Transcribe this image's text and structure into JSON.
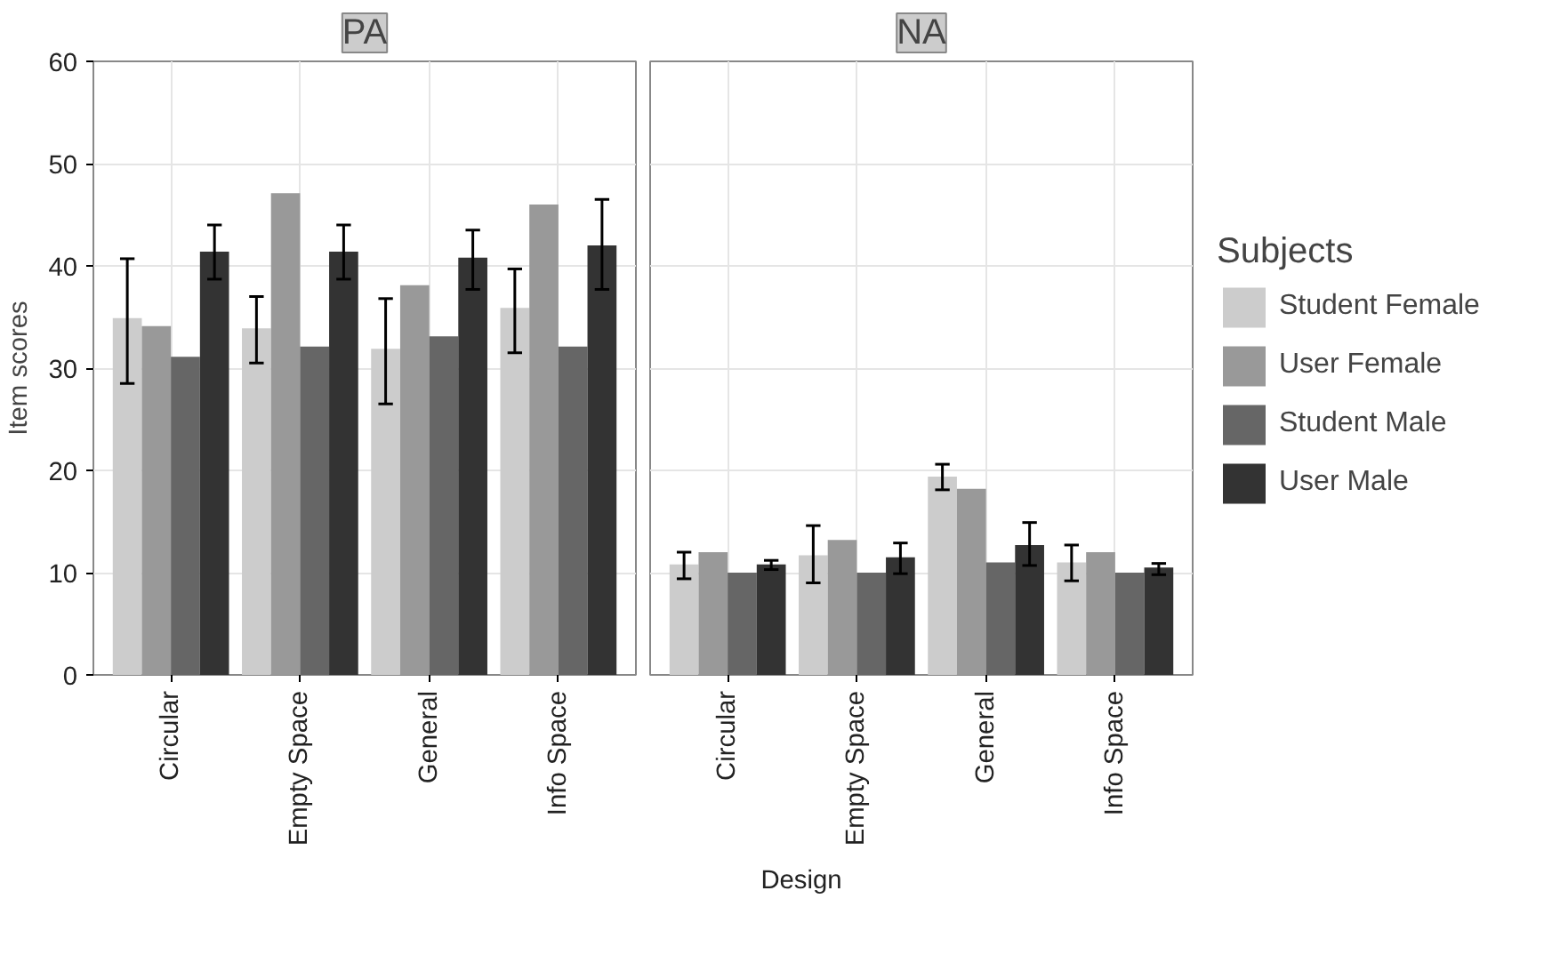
{
  "chart_data": [
    {
      "type": "bar",
      "title": "PA",
      "xlabel": "Design",
      "ylabel": "Item scores",
      "categories": [
        "Circular",
        "Empty Space",
        "General",
        "Info Space"
      ],
      "ylim": [
        0,
        60
      ],
      "yticks": [
        0,
        10,
        20,
        30,
        40,
        50,
        60
      ],
      "grid": true,
      "legend": false,
      "series": [
        {
          "color": "#cccccc",
          "values": [
            34.9,
            33.9,
            31.9,
            35.9
          ],
          "errors": [
            [
              28.5,
              40.7
            ],
            [
              30.5,
              37.0
            ],
            [
              26.5,
              36.8
            ],
            [
              31.5,
              39.7
            ]
          ]
        },
        {
          "color": "#999999",
          "values": [
            34.1,
            47.1,
            38.1,
            46.0
          ],
          "errors": [
            null,
            null,
            null,
            null
          ]
        },
        {
          "color": "#666666",
          "values": [
            31.1,
            32.1,
            33.1,
            32.1
          ],
          "errors": [
            null,
            null,
            null,
            null
          ]
        },
        {
          "color": "#333333",
          "values": [
            41.4,
            41.4,
            40.8,
            42.0
          ],
          "errors": [
            [
              38.7,
              44.0
            ],
            [
              38.7,
              44.0
            ],
            [
              37.7,
              43.5
            ],
            [
              37.7,
              46.5
            ]
          ]
        }
      ]
    },
    {
      "type": "bar",
      "title": "NA",
      "legend_title": "Subjects",
      "categories": [
        "Circular",
        "Empty Space",
        "General",
        "Info Space"
      ],
      "ylim": [
        0,
        60
      ],
      "yticks": [
        0,
        10,
        20,
        30,
        40,
        50,
        60
      ],
      "tick_labels": "x",
      "grid": true,
      "legend": "right",
      "series": [
        {
          "name": "Student Female",
          "color": "#cccccc",
          "values": [
            10.8,
            11.7,
            19.4,
            11.0
          ],
          "errors": [
            [
              9.4,
              12.0
            ],
            [
              9.0,
              14.6
            ],
            [
              18.1,
              20.6
            ],
            [
              9.2,
              12.7
            ]
          ]
        },
        {
          "name": "User Female",
          "color": "#999999",
          "values": [
            12.0,
            13.2,
            18.2,
            12.0
          ],
          "errors": [
            null,
            null,
            null,
            null
          ]
        },
        {
          "name": "Student Male",
          "color": "#666666",
          "values": [
            10.0,
            10.0,
            11.0,
            10.0
          ],
          "errors": [
            null,
            null,
            null,
            null
          ]
        },
        {
          "name": "User Male",
          "color": "#333333",
          "values": [
            10.8,
            11.5,
            12.7,
            10.5
          ],
          "errors": [
            [
              10.3,
              11.2
            ],
            [
              9.9,
              12.9
            ],
            [
              10.7,
              14.9
            ],
            [
              9.8,
              10.9
            ]
          ]
        }
      ]
    }
  ]
}
